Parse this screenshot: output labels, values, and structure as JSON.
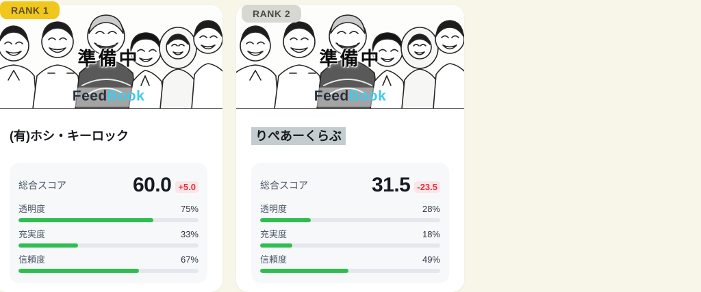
{
  "branding": {
    "overlay_status": "準備中",
    "logo_feed": "Feed",
    "logo_book": "Book"
  },
  "colors": {
    "page_background": "#f8f6e9",
    "card_background": "#ffffff",
    "rank1_badge": "#f1c61d",
    "rank2_badge": "#d8d8d2",
    "score_box_background": "#f7f8fa",
    "bar_fill_green": "#2fbd51",
    "bar_track": "#e4e8ec",
    "delta_red": "#e02e3e",
    "delta_badge_pink": "#fbe6e7",
    "name_highlight": "#c3cdd0",
    "logo_cyan": "#3fcbec"
  },
  "cards": [
    {
      "rank_label": "RANK 1",
      "name": "(有)ホシ・キーロック",
      "score_label": "総合スコア",
      "score": "60.0",
      "delta": "+5.0",
      "metrics": [
        {
          "label": "透明度",
          "value": "75%",
          "pct": 75
        },
        {
          "label": "充実度",
          "value": "33%",
          "pct": 33
        },
        {
          "label": "信頼度",
          "value": "67%",
          "pct": 67
        }
      ]
    },
    {
      "rank_label": "RANK 2",
      "name": "りぺあーくらぶ",
      "score_label": "総合スコア",
      "score": "31.5",
      "delta": "-23.5",
      "metrics": [
        {
          "label": "透明度",
          "value": "28%",
          "pct": 28
        },
        {
          "label": "充実度",
          "value": "18%",
          "pct": 18
        },
        {
          "label": "信頼度",
          "value": "49%",
          "pct": 49
        }
      ]
    }
  ]
}
